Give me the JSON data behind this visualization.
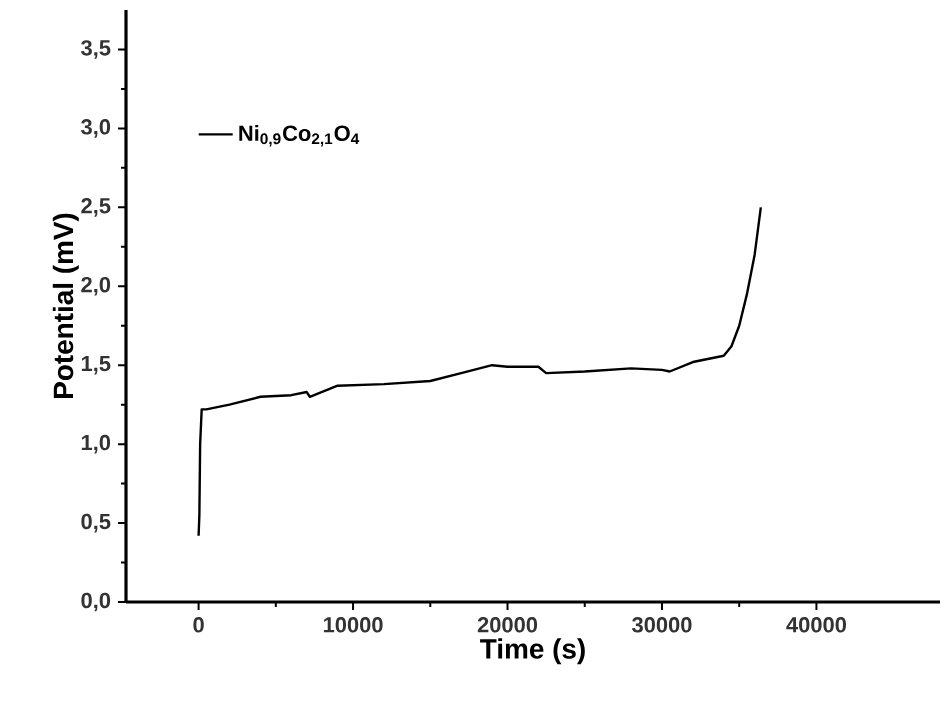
{
  "chart_data": {
    "type": "line",
    "xlabel": "Time (s)",
    "ylabel": "Potential (mV)",
    "xlim": [
      -4700,
      48000
    ],
    "ylim": [
      0,
      3.75
    ],
    "xticks": [
      0,
      10000,
      20000,
      30000,
      40000
    ],
    "yticks": [
      {
        "value": 0,
        "label": "0,0"
      },
      {
        "value": 0.5,
        "label": "0,5"
      },
      {
        "value": 1,
        "label": "1,0"
      },
      {
        "value": 1.5,
        "label": "1,5"
      },
      {
        "value": 2,
        "label": "2,0"
      },
      {
        "value": 2.5,
        "label": "2,5"
      },
      {
        "value": 3,
        "label": "3,0"
      },
      {
        "value": 3.5,
        "label": "3,5"
      }
    ],
    "legend": "top left",
    "grid": false,
    "series": [
      {
        "name": "Ni$_{0,9}$Co$_{2,1}$O$_{4}$",
        "color": "#000000",
        "x": [
          0,
          50,
          100,
          200,
          500,
          2000,
          4000,
          6000,
          7000,
          7200,
          9000,
          12000,
          15000,
          17000,
          19000,
          20000,
          22000,
          22500,
          25000,
          28000,
          30000,
          30500,
          32000,
          34000,
          34500,
          35000,
          35500,
          36000,
          36400
        ],
        "values": [
          0.42,
          0.55,
          1.0,
          1.22,
          1.22,
          1.25,
          1.3,
          1.31,
          1.33,
          1.3,
          1.37,
          1.38,
          1.4,
          1.45,
          1.5,
          1.49,
          1.49,
          1.45,
          1.46,
          1.48,
          1.47,
          1.46,
          1.52,
          1.56,
          1.62,
          1.75,
          1.95,
          2.2,
          2.5
        ]
      }
    ]
  }
}
